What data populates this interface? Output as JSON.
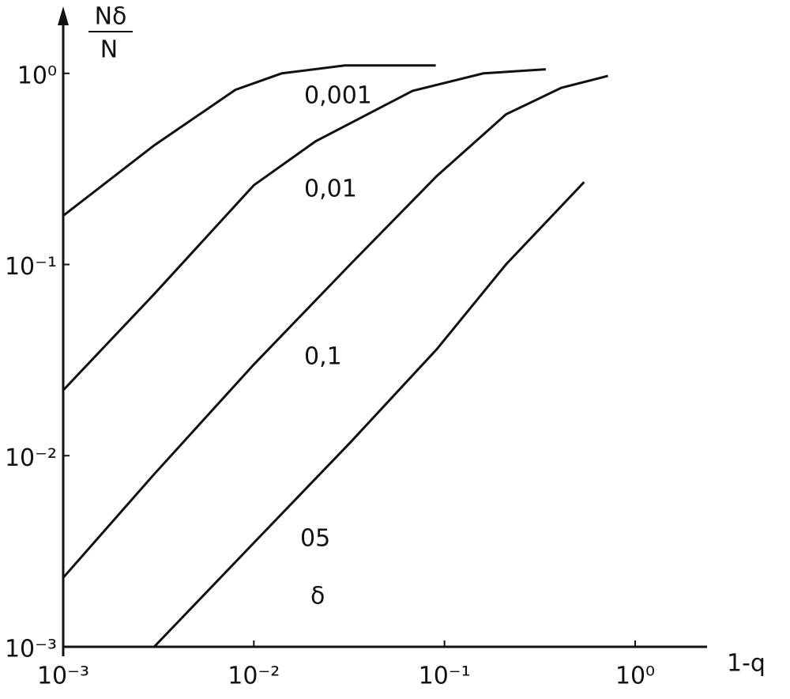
{
  "chart_data": {
    "type": "line",
    "y_label": {
      "numerator": "Nδ",
      "denominator": "N"
    },
    "x_label": "1-q",
    "annotation": "δ",
    "log_x": true,
    "log_y": true,
    "color": "#111111",
    "xlim": [
      0.001,
      2.5
    ],
    "ylim": [
      0.001,
      2.2
    ],
    "xticks": [
      {
        "value": 0.001,
        "label": "10⁻³"
      },
      {
        "value": 0.01,
        "label": "10⁻²"
      },
      {
        "value": 0.1,
        "label": "10⁻¹"
      },
      {
        "value": 1,
        "label": "10⁰"
      }
    ],
    "yticks": [
      {
        "value": 0.001,
        "label": "10⁻³"
      },
      {
        "value": 0.01,
        "label": "10⁻²"
      },
      {
        "value": 0.1,
        "label": "10⁻¹"
      },
      {
        "value": 1,
        "label": "10⁰"
      }
    ],
    "series": [
      {
        "name": "0,001",
        "x": [
          0.001,
          0.003,
          0.008,
          0.014,
          0.03,
          0.09
        ],
        "values": [
          0.18,
          0.42,
          0.82,
          1.0,
          1.1,
          1.1
        ]
      },
      {
        "name": "0,01",
        "x": [
          0.001,
          0.003,
          0.01,
          0.021,
          0.068,
          0.16,
          0.34
        ],
        "values": [
          0.022,
          0.07,
          0.26,
          0.44,
          0.81,
          1.0,
          1.05
        ]
      },
      {
        "name": "0,1",
        "x": [
          0.001,
          0.003,
          0.01,
          0.032,
          0.091,
          0.21,
          0.41,
          0.72
        ],
        "values": [
          0.0023,
          0.008,
          0.03,
          0.1,
          0.29,
          0.61,
          0.84,
          0.97
        ]
      },
      {
        "name": "05",
        "x": [
          0.003,
          0.01,
          0.032,
          0.091,
          0.21,
          0.54
        ],
        "values": [
          0.001,
          0.0035,
          0.0117,
          0.036,
          0.1,
          0.27
        ]
      }
    ]
  }
}
